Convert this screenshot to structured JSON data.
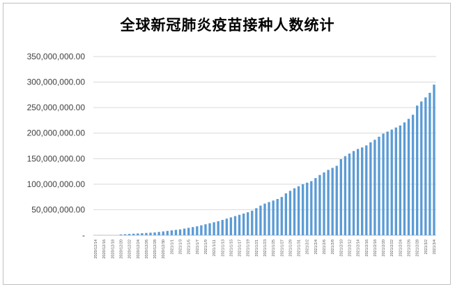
{
  "chart_data": {
    "type": "bar",
    "title": "全球新冠肺炎疫苗接种人数统计",
    "xlabel": "",
    "ylabel": "",
    "ylim": [
      0,
      350000000
    ],
    "grid": true,
    "legend": "none",
    "bar_color": "#5b9bd5",
    "yticks": [
      {
        "value": 0,
        "label": "-"
      },
      {
        "value": 50000000,
        "label": "50,000,000.00"
      },
      {
        "value": 100000000,
        "label": "100,000,000.00"
      },
      {
        "value": 150000000,
        "label": "150,000,000.00"
      },
      {
        "value": 200000000,
        "label": "200,000,000.00"
      },
      {
        "value": 250000000,
        "label": "250,000,000.00"
      },
      {
        "value": 300000000,
        "label": "300,000,000.00"
      },
      {
        "value": 350000000,
        "label": "350,000,000.00"
      }
    ],
    "categories": [
      "2020/12/14",
      "2020/12/15",
      "2020/12/16",
      "2020/12/17",
      "2020/12/18",
      "2020/12/19",
      "2020/12/20",
      "2020/12/21",
      "2020/12/22",
      "2020/12/23",
      "2020/12/24",
      "2020/12/25",
      "2020/12/26",
      "2020/12/27",
      "2020/12/28",
      "2020/12/29",
      "2020/12/30",
      "2020/12/31",
      "2021/1/1",
      "2021/1/2",
      "2021/1/3",
      "2021/1/4",
      "2021/1/5",
      "2021/1/6",
      "2021/1/7",
      "2021/1/8",
      "2021/1/9",
      "2021/1/10",
      "2021/1/11",
      "2021/1/12",
      "2021/1/13",
      "2021/1/14",
      "2021/1/15",
      "2021/1/16",
      "2021/1/17",
      "2021/1/18",
      "2021/1/19",
      "2021/1/20",
      "2021/1/21",
      "2021/1/22",
      "2021/1/23",
      "2021/1/24",
      "2021/1/25",
      "2021/1/26",
      "2021/1/27",
      "2021/1/28",
      "2021/1/29",
      "2021/1/30",
      "2021/1/31",
      "2021/2/1",
      "2021/2/2",
      "2021/2/3",
      "2021/2/4",
      "2021/2/5",
      "2021/2/6",
      "2021/2/7",
      "2021/2/8",
      "2021/2/9",
      "2021/2/10",
      "2021/2/11",
      "2021/2/12",
      "2021/2/13",
      "2021/2/14",
      "2021/2/15",
      "2021/2/16",
      "2021/2/17",
      "2021/2/18",
      "2021/2/19",
      "2021/2/20",
      "2021/2/21",
      "2021/2/22",
      "2021/2/23",
      "2021/2/24",
      "2021/2/25",
      "2021/2/26",
      "2021/2/27",
      "2021/2/28",
      "2021/3/1",
      "2021/3/2",
      "2021/3/3",
      "2021/3/4"
    ],
    "tick_labels_every": 2,
    "values": [
      0,
      0,
      0,
      0,
      0,
      0,
      1500000,
      2000000,
      2500000,
      3000000,
      3500000,
      4000000,
      4500000,
      5000000,
      5500000,
      6500000,
      7500000,
      8500000,
      9500000,
      10500000,
      11500000,
      13000000,
      14500000,
      16000000,
      17500000,
      19500000,
      21500000,
      23500000,
      25500000,
      27500000,
      30000000,
      32500000,
      35000000,
      37500000,
      40000000,
      42500000,
      45000000,
      48000000,
      53000000,
      58000000,
      62000000,
      65000000,
      68000000,
      71000000,
      75000000,
      82000000,
      87000000,
      92000000,
      96000000,
      100000000,
      103000000,
      106000000,
      112000000,
      118000000,
      123000000,
      128000000,
      132000000,
      136000000,
      149000000,
      155000000,
      160000000,
      165000000,
      169000000,
      172000000,
      176000000,
      182000000,
      187000000,
      193000000,
      199000000,
      203000000,
      207000000,
      211000000,
      215000000,
      221000000,
      228000000,
      236000000,
      254000000,
      262000000,
      270000000,
      279000000,
      295000000
    ]
  }
}
